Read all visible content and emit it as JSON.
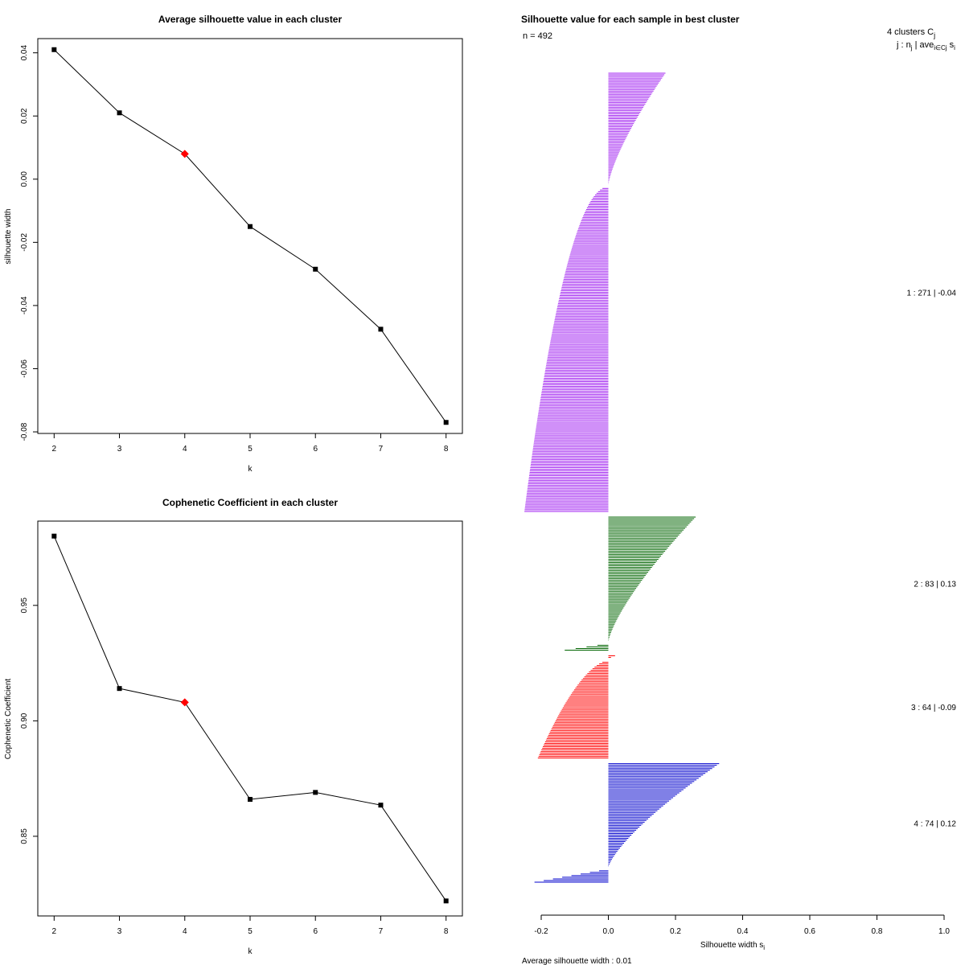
{
  "chart_data": [
    {
      "type": "line",
      "title": "Average silhouette value in each cluster",
      "xlabel": "k",
      "ylabel": "silhouette width",
      "x": [
        2,
        3,
        4,
        5,
        6,
        7,
        8
      ],
      "values": [
        0.041,
        0.021,
        0.008,
        -0.015,
        -0.0285,
        -0.0475,
        -0.077
      ],
      "highlight_k": 4,
      "xlim": [
        1.75,
        8.25
      ],
      "ylim": [
        -0.0805,
        0.0445
      ],
      "xticks": [
        "2",
        "3",
        "4",
        "5",
        "6",
        "7",
        "8"
      ],
      "yticks": [
        "-0.08",
        "-0.06",
        "-0.04",
        "-0.02",
        "0.00",
        "0.02",
        "0.04"
      ],
      "colors": {
        "line": "#000000",
        "highlight": "#ff0000"
      }
    },
    {
      "type": "line",
      "title": "Cophenetic Coefficient in each cluster",
      "xlabel": "k",
      "ylabel": "Cophenetic Coefficient",
      "x": [
        2,
        3,
        4,
        5,
        6,
        7,
        8
      ],
      "values": [
        0.98,
        0.914,
        0.908,
        0.866,
        0.869,
        0.8635,
        0.822
      ],
      "highlight_k": 4,
      "xlim": [
        1.75,
        8.25
      ],
      "ylim": [
        0.8155,
        0.9865
      ],
      "xticks": [
        "2",
        "3",
        "4",
        "5",
        "6",
        "7",
        "8"
      ],
      "yticks": [
        "0.85",
        "0.90",
        "0.95"
      ],
      "colors": {
        "line": "#000000",
        "highlight": "#ff0000"
      }
    },
    {
      "type": "bar",
      "orientation": "horizontal",
      "title": "Silhouette value for each sample in best cluster",
      "n_label": "n = 492",
      "header_line1": "4  clusters  C",
      "header_line1_sub": "j",
      "header_line2": "j :  n",
      "header_line2_mid": " | ave",
      "header_line2_end": "  s",
      "xlabel": "Silhouette width s",
      "xlabel_sub": "i",
      "average_label": "Average silhouette width :  0.01",
      "xlim": [
        -0.2,
        1.0
      ],
      "xticks": [
        "-0.2",
        "0.0",
        "0.2",
        "0.4",
        "0.6",
        "0.8",
        "1.0"
      ],
      "clusters": [
        {
          "id": 1,
          "n": 271,
          "ave": -0.04,
          "label": "1 :  271  |  -0.04",
          "color": "#a020f0",
          "max": 0.17,
          "min": -0.25,
          "pos_count": 70,
          "neg_power": 0.5
        },
        {
          "id": 2,
          "n": 83,
          "ave": 0.13,
          "label": "2 :   83  |  0.13",
          "color": "#006400",
          "max": 0.26,
          "min": -0.13,
          "pos_count": 78,
          "neg_power": 1.0
        },
        {
          "id": 3,
          "n": 64,
          "ave": -0.09,
          "label": "3 :   64  |  -0.09",
          "color": "#ff0000",
          "max": 0.02,
          "min": -0.21,
          "pos_count": 3,
          "neg_power": 0.6
        },
        {
          "id": 4,
          "n": 74,
          "ave": 0.12,
          "label": "4 :   74  |  0.12",
          "color": "#0000cd",
          "max": 0.33,
          "min": -0.22,
          "pos_count": 65,
          "neg_power": 1.0
        }
      ]
    }
  ]
}
